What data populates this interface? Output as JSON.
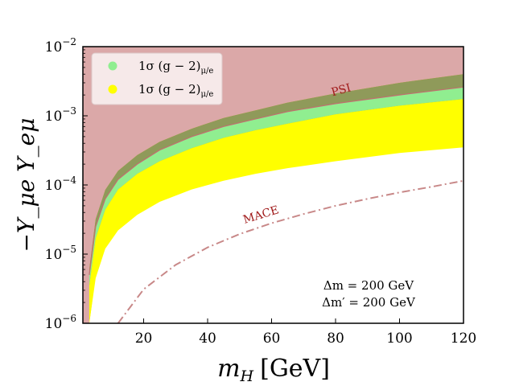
{
  "chart_data": {
    "type": "area",
    "title": "",
    "xlabel": "m_H [GeV]",
    "xlabel_var": "m",
    "xlabel_sub": "H",
    "xlabel_unit": "[GeV]",
    "ylabel": "−Y_μe Y_eμ",
    "xlim": [
      1,
      120
    ],
    "ylim": [
      1e-06,
      0.01
    ],
    "yscale": "log",
    "x_ticks": [
      20,
      40,
      60,
      80,
      100,
      120
    ],
    "y_ticks": [
      {
        "value": 1e-06,
        "exp": "−6"
      },
      {
        "value": 1e-05,
        "exp": "−5"
      },
      {
        "value": 0.0001,
        "exp": "−4"
      },
      {
        "value": 0.001,
        "exp": "−3"
      },
      {
        "value": 0.01,
        "exp": "−2"
      }
    ],
    "x": [
      3,
      5,
      8,
      12,
      18,
      25,
      35,
      45,
      55,
      65,
      80,
      100,
      120
    ],
    "series": [
      {
        "name": "excluded_region",
        "color": "#dba8a8",
        "role": "psi_exclusion",
        "lower": [
          5e-06,
          2.5e-05,
          6.3e-05,
          0.00012,
          0.0002,
          0.00032,
          0.0005,
          0.0007,
          0.0009,
          0.00115,
          0.0015,
          0.002,
          0.0026
        ]
      },
      {
        "name": "band_dark_yellow",
        "color": "#d8ac00",
        "lower": [
          1e-06,
          5e-06,
          1.3e-05,
          2.4e-05,
          4e-05,
          6e-05,
          9e-05,
          0.00012,
          0.00015,
          0.00018,
          0.00023,
          0.0003,
          0.00036
        ],
        "upper": [
          6e-06,
          3.2e-05,
          8.5e-05,
          0.00016,
          0.00027,
          0.00042,
          0.00065,
          0.00093,
          0.0012,
          0.00155,
          0.0021,
          0.003,
          0.004
        ]
      },
      {
        "name": "1σ (g−2)_μ/e yellow",
        "color": "#ffff00",
        "lower": [
          1e-06,
          4.5e-06,
          1.2e-05,
          2.2e-05,
          3.7e-05,
          5.7e-05,
          8.6e-05,
          0.000115,
          0.000145,
          0.000175,
          0.00022,
          0.00029,
          0.00035
        ],
        "upper": [
          3.5e-06,
          1.7e-05,
          4.4e-05,
          8.6e-05,
          0.000145,
          0.00022,
          0.00034,
          0.00048,
          0.00062,
          0.00077,
          0.00105,
          0.0014,
          0.00175
        ]
      },
      {
        "name": "1σ (g−2)_μ/e green",
        "color": "#90ee90",
        "lower": [
          3.5e-06,
          1.7e-05,
          4.4e-05,
          8.6e-05,
          0.000145,
          0.00022,
          0.00034,
          0.00048,
          0.00062,
          0.00077,
          0.00105,
          0.0014,
          0.00175
        ],
        "upper": [
          5e-06,
          2.5e-05,
          6.3e-05,
          0.00012,
          0.0002,
          0.00032,
          0.0005,
          0.0007,
          0.0009,
          0.00115,
          0.0015,
          0.002,
          0.0026
        ]
      },
      {
        "name": "overlap_olive",
        "color": "#8f9a5a",
        "lower": [
          5e-06,
          2.5e-05,
          6.3e-05,
          0.00012,
          0.0002,
          0.00032,
          0.0005,
          0.0007,
          0.0009,
          0.00115,
          0.0015,
          0.002,
          0.0026
        ],
        "upper": [
          6e-06,
          3.2e-05,
          8.5e-05,
          0.00016,
          0.00027,
          0.00042,
          0.00065,
          0.00093,
          0.0012,
          0.00155,
          0.0021,
          0.003,
          0.004
        ]
      }
    ],
    "curves": [
      {
        "name": "MACE",
        "style": "dashdot",
        "color": "#c88888",
        "x": [
          12,
          20,
          30,
          40,
          50,
          60,
          70,
          80,
          90,
          100,
          110,
          120
        ],
        "y": [
          1e-06,
          3.1e-06,
          7e-06,
          1.25e-05,
          1.95e-05,
          2.8e-05,
          3.8e-05,
          5e-05,
          6.3e-05,
          7.8e-05,
          9.4e-05,
          0.000115
        ]
      }
    ],
    "labels": [
      {
        "text": "PSI",
        "color": "#a01a1a",
        "x": 82,
        "y": 0.0021,
        "rotate": -15
      },
      {
        "text": "MACE",
        "color": "#a01a1a",
        "x": 57,
        "y": 3.3e-05,
        "rotate": -17
      }
    ],
    "annotations": {
      "line1": "Δm = 200 GeV",
      "line2": "Δm′ = 200 GeV"
    },
    "legend": {
      "position": "top-left",
      "entries": [
        {
          "label": "1σ (g − 2)",
          "sub": "μ/e",
          "color": "#90ee90"
        },
        {
          "label": "1σ (g − 2)",
          "sub": "μ/e",
          "color": "#ffff00"
        }
      ]
    },
    "colors": {
      "background": "#dba8a8",
      "psi_line": "#c07070"
    }
  }
}
